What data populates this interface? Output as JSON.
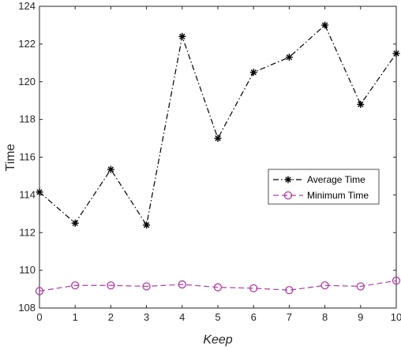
{
  "chart_data": {
    "type": "line",
    "title": "",
    "xlabel": "Keep",
    "ylabel": "Time",
    "x": [
      0,
      1,
      2,
      3,
      4,
      5,
      6,
      7,
      8,
      9,
      10
    ],
    "xlim": [
      0,
      10
    ],
    "ylim": [
      108,
      124
    ],
    "xticks": [
      "0",
      "1",
      "2",
      "3",
      "4",
      "5",
      "6",
      "7",
      "8",
      "9",
      "10"
    ],
    "yticks": [
      "108",
      "110",
      "112",
      "114",
      "116",
      "118",
      "120",
      "122",
      "124"
    ],
    "grid": false,
    "legend_position": "right-middle",
    "series": [
      {
        "name": "Average Time",
        "values": [
          114.15,
          112.5,
          115.35,
          112.4,
          122.4,
          117.0,
          120.5,
          121.3,
          123.0,
          118.8,
          121.5
        ],
        "color": "#000000",
        "marker": "asterisk",
        "line_style": "dash-dot"
      },
      {
        "name": "Minimum Time",
        "values": [
          108.9,
          109.2,
          109.2,
          109.15,
          109.25,
          109.1,
          109.05,
          108.95,
          109.2,
          109.15,
          109.45
        ],
        "color": "#b03aa8",
        "marker": "circle",
        "line_style": "dashed"
      }
    ]
  }
}
